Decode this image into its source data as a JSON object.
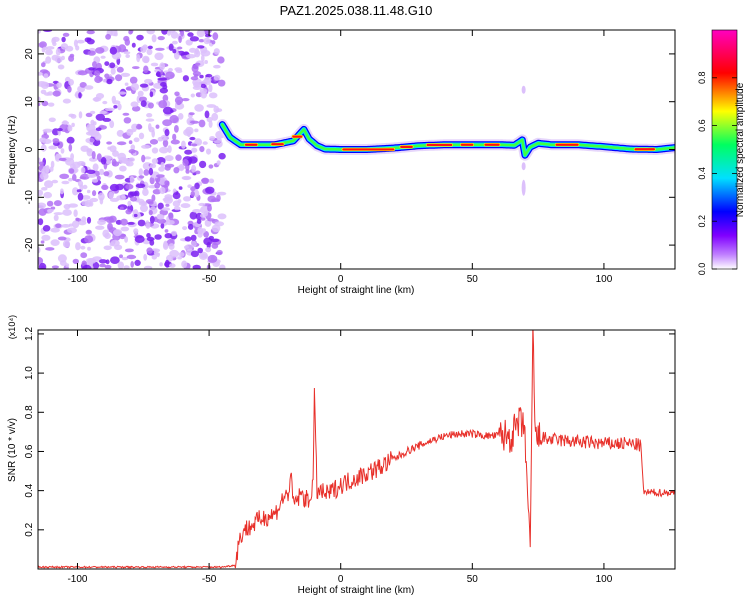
{
  "title": "PAZ1.2025.038.11.48.G10",
  "chart_data": [
    {
      "type": "heatmap",
      "xlabel": "Height of straight line (km)",
      "ylabel": "Frequency (Hz)",
      "xlim": [
        -115,
        127
      ],
      "ylim": [
        -25,
        25
      ],
      "x_ticks": [
        -100,
        -50,
        0,
        50,
        100
      ],
      "y_ticks": [
        -20,
        -10,
        0,
        10,
        20
      ],
      "colorbar": {
        "label": "Normalized spectral amplitude",
        "range": [
          0,
          1
        ],
        "ticks": [
          0.0,
          0.2,
          0.4,
          0.6,
          0.8
        ],
        "colors": [
          "#ffffff",
          "#c080ff",
          "#8000ff",
          "#0000ff",
          "#00e0ff",
          "#00ff60",
          "#ffff00",
          "#ff0000",
          "#ff00c0"
        ]
      },
      "noise_region_x": [
        -115,
        -45
      ],
      "ridge": {
        "x": [
          -45,
          -42,
          -38,
          -32,
          -25,
          -18,
          -14,
          -12,
          -9,
          -6,
          0,
          10,
          20,
          30,
          40,
          50,
          60,
          66,
          69,
          70,
          72,
          75,
          80,
          90,
          100,
          110,
          120,
          127
        ],
        "y": [
          5.2,
          2.5,
          1.0,
          1.0,
          1.0,
          1.8,
          4.2,
          2.2,
          0.8,
          0.1,
          0.0,
          0.0,
          0.3,
          0.8,
          1.0,
          1.0,
          1.0,
          0.9,
          2.0,
          -1.2,
          0.5,
          1.3,
          1.0,
          1.0,
          0.6,
          0.1,
          0.0,
          0.4
        ],
        "peak_segments": [
          {
            "x": [
              -36,
              -32
            ]
          },
          {
            "x": [
              -26,
              -22
            ]
          },
          {
            "x": [
              -18,
              -15
            ]
          },
          {
            "x": [
              1,
              20
            ]
          },
          {
            "x": [
              23,
              27
            ]
          },
          {
            "x": [
              33,
              42
            ]
          },
          {
            "x": [
              46,
              50
            ]
          },
          {
            "x": [
              55,
              60
            ]
          },
          {
            "x": [
              82,
              90
            ]
          },
          {
            "x": [
              112,
              119
            ]
          }
        ]
      }
    },
    {
      "type": "line",
      "xlabel": "Height of straight line (km)",
      "ylabel": "SNR (10 * v/v)",
      "y_multiplier": "(x10⁴)",
      "xlim": [
        -115,
        127
      ],
      "ylim": [
        0,
        1.22
      ],
      "x_ticks": [
        -100,
        -50,
        0,
        50,
        100
      ],
      "y_ticks": [
        0.2,
        0.4,
        0.6,
        0.8,
        1.0,
        1.2
      ],
      "color": "#e8302a",
      "series": [
        {
          "x": [
            -115,
            -60,
            -45,
            -40,
            -39,
            -37,
            -35,
            -30,
            -25,
            -22,
            -20,
            -19,
            -18,
            -15,
            -12,
            -10.5,
            -10,
            -9,
            -5,
            0,
            5,
            10,
            15,
            20,
            25,
            30,
            35,
            40,
            45,
            50,
            55,
            60,
            65,
            68,
            70,
            72,
            73,
            74,
            76,
            80,
            90,
            100,
            110,
            114,
            115,
            116,
            120,
            127
          ],
          "y": [
            0.01,
            0.01,
            0.01,
            0.02,
            0.12,
            0.2,
            0.21,
            0.26,
            0.28,
            0.36,
            0.38,
            0.48,
            0.33,
            0.38,
            0.34,
            0.45,
            0.88,
            0.4,
            0.38,
            0.43,
            0.46,
            0.49,
            0.52,
            0.56,
            0.6,
            0.63,
            0.66,
            0.68,
            0.69,
            0.69,
            0.68,
            0.68,
            0.68,
            0.75,
            0.7,
            0.05,
            1.22,
            0.66,
            0.67,
            0.66,
            0.65,
            0.64,
            0.64,
            0.63,
            0.4,
            0.39,
            0.39,
            0.39
          ]
        }
      ]
    }
  ]
}
